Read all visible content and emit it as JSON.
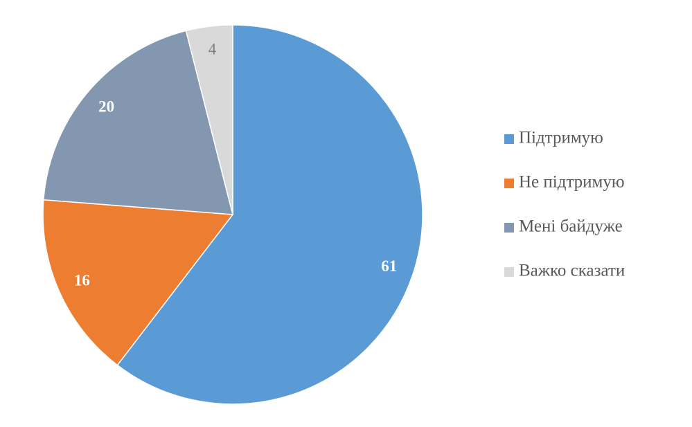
{
  "chart_data": {
    "type": "pie",
    "categories": [
      "Підтримую",
      "Не підтримую",
      "Мені байдуже",
      "Важко сказати"
    ],
    "values": [
      61,
      16,
      20,
      4
    ],
    "colors": [
      "#5b9bd5",
      "#ed7d31",
      "#8497b0",
      "#d9d9d9"
    ],
    "legend": "right"
  }
}
